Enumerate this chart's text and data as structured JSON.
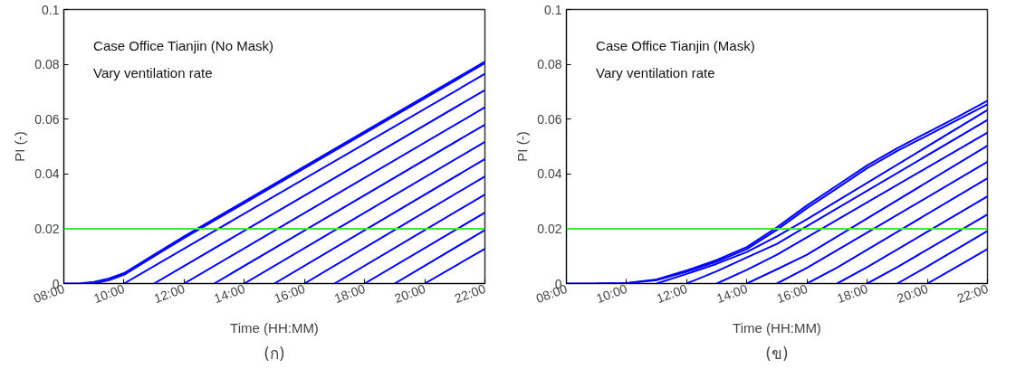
{
  "chart_data": [
    {
      "type": "line",
      "xlabel": "Time (HH:MM)",
      "ylabel": "PI (-)",
      "xlim": [
        8,
        22
      ],
      "ylim": [
        0,
        0.1
      ],
      "xticks": [
        {
          "value": 8,
          "label": "08:00"
        },
        {
          "value": 10,
          "label": "10:00"
        },
        {
          "value": 12,
          "label": "12:00"
        },
        {
          "value": 14,
          "label": "14:00"
        },
        {
          "value": 16,
          "label": "16:00"
        },
        {
          "value": 18,
          "label": "18:00"
        },
        {
          "value": 20,
          "label": "20:00"
        },
        {
          "value": 22,
          "label": "22:00"
        }
      ],
      "yticks": [
        0,
        0.02,
        0.04,
        0.06,
        0.08,
        0.1
      ],
      "grid": false,
      "marker": "none",
      "line_style": "solid",
      "ref_lines": [
        {
          "axis": "y",
          "value": 0.02,
          "label": null,
          "color": "#33ee33"
        }
      ],
      "annotations": [
        "Case Office Tianjin (No Mask)",
        "Vary ventilation rate",
        "(ก)"
      ],
      "series": [
        {
          "color": "#0000ff",
          "x": [
            8,
            8.5,
            9,
            9.5,
            10,
            11,
            12,
            22
          ],
          "values": [
            0,
            0,
            0.0006,
            0.0018,
            0.0038,
            0.0105,
            0.0172,
            0.081
          ]
        },
        {
          "color": "#0000ff",
          "x": [
            9,
            9.5,
            10,
            11,
            12,
            22
          ],
          "values": [
            0,
            0.0012,
            0.0032,
            0.0099,
            0.0166,
            0.0804
          ]
        },
        {
          "color": "#0000ff",
          "x": [
            10,
            22
          ],
          "values": [
            0,
            0.0765
          ]
        },
        {
          "color": "#0000ff",
          "x": [
            11,
            22
          ],
          "values": [
            0,
            0.0706
          ]
        },
        {
          "color": "#0000ff",
          "x": [
            12,
            22
          ],
          "values": [
            0,
            0.0643
          ]
        },
        {
          "color": "#0000ff",
          "x": [
            13,
            22
          ],
          "values": [
            0,
            0.058
          ]
        },
        {
          "color": "#0000ff",
          "x": [
            14,
            22
          ],
          "values": [
            0,
            0.0517
          ]
        },
        {
          "color": "#0000ff",
          "x": [
            15,
            22
          ],
          "values": [
            0,
            0.0454
          ]
        },
        {
          "color": "#0000ff",
          "x": [
            16,
            22
          ],
          "values": [
            0,
            0.0391
          ]
        },
        {
          "color": "#0000ff",
          "x": [
            17,
            22
          ],
          "values": [
            0,
            0.0325
          ]
        },
        {
          "color": "#0000ff",
          "x": [
            18,
            22
          ],
          "values": [
            0,
            0.0259
          ]
        },
        {
          "color": "#0000ff",
          "x": [
            19,
            22
          ],
          "values": [
            0,
            0.0195
          ]
        },
        {
          "color": "#0000ff",
          "x": [
            20,
            22
          ],
          "values": [
            0,
            0.0127
          ]
        }
      ]
    },
    {
      "type": "line",
      "xlabel": "Time (HH:MM)",
      "ylabel": "PI (-)",
      "xlim": [
        8,
        22
      ],
      "ylim": [
        0,
        0.1
      ],
      "xticks": [
        {
          "value": 8,
          "label": "08:00"
        },
        {
          "value": 10,
          "label": "10:00"
        },
        {
          "value": 12,
          "label": "12:00"
        },
        {
          "value": 14,
          "label": "14:00"
        },
        {
          "value": 16,
          "label": "16:00"
        },
        {
          "value": 18,
          "label": "18:00"
        },
        {
          "value": 20,
          "label": "20:00"
        },
        {
          "value": 22,
          "label": "22:00"
        }
      ],
      "yticks": [
        0,
        0.02,
        0.04,
        0.06,
        0.08,
        0.1
      ],
      "grid": false,
      "marker": "none",
      "line_style": "solid",
      "ref_lines": [
        {
          "axis": "y",
          "value": 0.02,
          "label": null,
          "color": "#33ee33"
        }
      ],
      "annotations": [
        "Case Office Tianjin (Mask)",
        "Vary ventilation rate",
        "(ข)"
      ],
      "series": [
        {
          "color": "#0000ff",
          "x": [
            8,
            9,
            10,
            11,
            12,
            13,
            14,
            15,
            16,
            17,
            18,
            19,
            20,
            21,
            22
          ],
          "values": [
            0,
            0,
            0.0002,
            0.0015,
            0.0048,
            0.0086,
            0.0133,
            0.0205,
            0.0285,
            0.0358,
            0.0431,
            0.0494,
            0.0551,
            0.0608,
            0.0667
          ]
        },
        {
          "color": "#0000ff",
          "x": [
            9,
            10,
            11,
            12,
            13,
            14,
            15,
            16,
            17,
            18,
            19,
            20,
            21,
            22
          ],
          "values": [
            0,
            0.0001,
            0.0012,
            0.0043,
            0.008,
            0.0126,
            0.0196,
            0.0275,
            0.0348,
            0.0421,
            0.0484,
            0.054,
            0.0597,
            0.0654
          ]
        },
        {
          "color": "#0000ff",
          "x": [
            11,
            12,
            13,
            14,
            15,
            16,
            22
          ],
          "values": [
            0,
            0.0035,
            0.0072,
            0.0115,
            0.0172,
            0.0235,
            0.0633
          ]
        },
        {
          "color": "#0000ff",
          "x": [
            12,
            13,
            14,
            15,
            22
          ],
          "values": [
            0,
            0.0045,
            0.0095,
            0.0145,
            0.0597
          ]
        },
        {
          "color": "#0000ff",
          "x": [
            13,
            14,
            15,
            22
          ],
          "values": [
            0,
            0.005,
            0.0105,
            0.0551
          ]
        },
        {
          "color": "#0000ff",
          "x": [
            14,
            15,
            16,
            22
          ],
          "values": [
            0,
            0.0052,
            0.0105,
            0.0503
          ]
        },
        {
          "color": "#0000ff",
          "x": [
            15,
            16,
            22
          ],
          "values": [
            0,
            0.0057,
            0.0444
          ]
        },
        {
          "color": "#0000ff",
          "x": [
            16,
            17,
            22
          ],
          "values": [
            0,
            0.0058,
            0.0384
          ]
        },
        {
          "color": "#0000ff",
          "x": [
            17,
            18,
            22
          ],
          "values": [
            0,
            0.006,
            0.0318
          ]
        },
        {
          "color": "#0000ff",
          "x": [
            18,
            19,
            22
          ],
          "values": [
            0,
            0.006,
            0.0252
          ]
        },
        {
          "color": "#0000ff",
          "x": [
            19,
            20,
            22
          ],
          "values": [
            0,
            0.0062,
            0.0192
          ]
        },
        {
          "color": "#0000ff",
          "x": [
            20,
            21,
            22
          ],
          "values": [
            0,
            0.0062,
            0.0126
          ]
        }
      ]
    }
  ]
}
